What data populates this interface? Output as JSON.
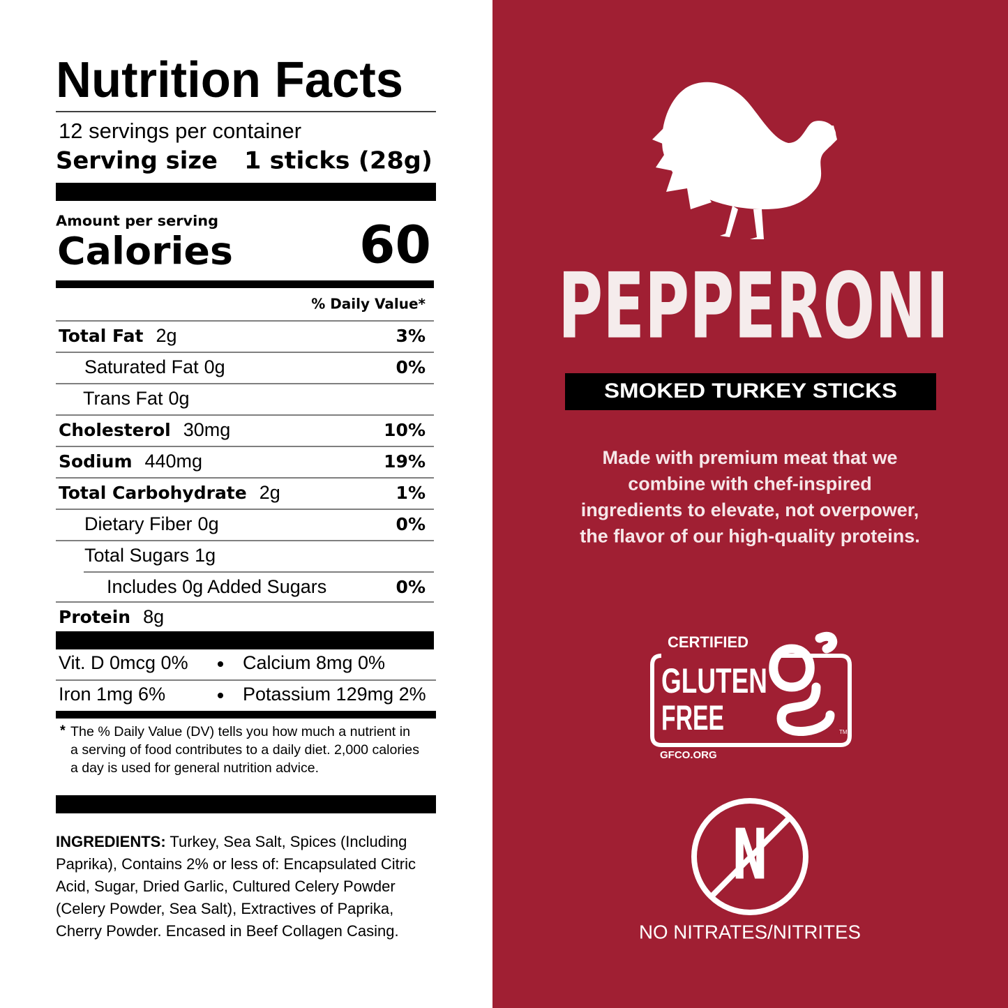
{
  "nutrition": {
    "title": "Nutrition Facts",
    "servings": "12 servings per container",
    "serving_size_label": "Serving size",
    "serving_size_value": "1 sticks (28g)",
    "amount_per_serving": "Amount per serving",
    "calories_label": "Calories",
    "calories_value": "60",
    "daily_value_header": "% Daily Value*",
    "rows": [
      {
        "label": "Total Fat",
        "amount": "2g",
        "dv": "3%"
      },
      {
        "label": "Saturated Fat",
        "amount": "0g",
        "dv": "0%"
      },
      {
        "label": "Trans  Fat",
        "amount": "0g"
      },
      {
        "label": "Cholesterol",
        "amount": "30mg",
        "dv": "10%"
      },
      {
        "label": "Sodium",
        "amount": "440mg",
        "dv": "19%"
      },
      {
        "label": "Total Carbohydrate",
        "amount": "2g",
        "dv": "1%"
      },
      {
        "label": "Dietary Fiber",
        "amount": "0g",
        "dv": "0%"
      },
      {
        "label": "Total Sugars",
        "amount": "1g"
      },
      {
        "label": "Includes 0g Added Sugars",
        "dv": "0%"
      },
      {
        "label": "Protein",
        "amount": "8g"
      }
    ],
    "vitamins": [
      [
        "Vit. D 0mcg 0%",
        "Calcium 8mg 0%"
      ],
      [
        "Iron 1mg 6%",
        "Potassium 129mg 2%"
      ]
    ],
    "footnote_marker": "*",
    "footnote_lines": [
      "The % Daily Value (DV) tells you how much a nutrient in",
      "a serving of food contributes to a daily diet. 2,000 calories",
      "a day is used for general nutrition advice."
    ],
    "ingredients_label": "INGREDIENTS:",
    "ingredients_lines": [
      " Turkey, Sea Salt, Spices (Including",
      "Paprika), Contains 2% or less of: Encapsulated Citric",
      "Acid, Sugar, Dried Garlic, Cultured Celery Powder",
      "(Celery Powder, Sea Salt), Extractives of Paprika,",
      "Cherry Powder. Encased in Beef Collagen Casing."
    ]
  },
  "product": {
    "name": "PEPPERONI",
    "subtitle": "SMOKED TURKEY STICKS",
    "description_lines": [
      "Made with premium meat that we",
      "combine with chef-inspired",
      "ingredients to elevate, not overpower,",
      "the flavor of our high-quality proteins."
    ],
    "certification": {
      "top": "CERTIFIED",
      "line1": "GLUTEN",
      "line2": "FREE",
      "trademark": "TM",
      "site": "GFCO.ORG"
    },
    "no_nitrates_symbol": "N",
    "no_nitrates_label": "NO NITRATES/NITRITES"
  }
}
